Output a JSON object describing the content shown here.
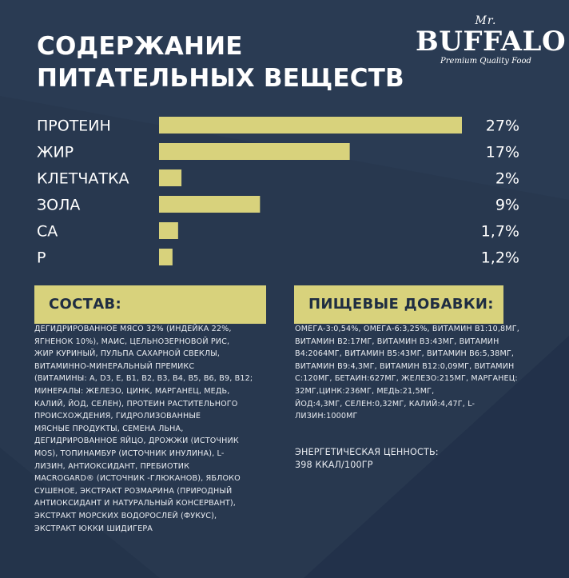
{
  "heading": {
    "line1": "СОДЕРЖАНИЕ",
    "line2": "ПИТАТЕЛЬНЫХ ВЕЩЕСТВ"
  },
  "brand": {
    "mr": "Mr.",
    "name": "BUFFALO",
    "tagline": "Premium Quality Food"
  },
  "colors": {
    "background": "#28384f",
    "accent": "#d8d27c",
    "text": "#ffffff"
  },
  "chart_data": {
    "type": "bar",
    "orientation": "horizontal",
    "categories": [
      "ПРОТЕИН",
      "ЖИР",
      "КЛЕТЧАТКА",
      "ЗОЛА",
      "CA",
      "P"
    ],
    "values": [
      27,
      17,
      2,
      9,
      1.7,
      1.2
    ],
    "value_labels": [
      "27%",
      "17%",
      "2%",
      "9%",
      "1,7%",
      "1,2%"
    ],
    "unit": "%",
    "xlim": [
      0,
      27
    ],
    "grid": false,
    "legend": "none"
  },
  "composition": {
    "title": "СОСТАВ:",
    "lines": [
      "ДЕГИДРИРОВАННОЕ МЯСО 32% (ИНДЕЙКА 22%,",
      "ЯГНЕНОК 10%), МАИС, ЦЕЛЬНОЗЕРНОВОЙ РИС,",
      "ЖИР КУРИНЫЙ, ПУЛЬПА САХАРНОЙ СВЕКЛЫ,",
      "ВИТАМИННО-МИНЕРАЛЬНЫЙ ПРЕМИКС",
      "(ВИТАМИНЫ: A, D3, E, B1, B2, B3, B4, B5, B6, B9, B12;",
      "МИНЕРАЛЫ: ЖЕЛЕЗО, ЦИНК, МАРГАНЕЦ, МЕДЬ,",
      "КАЛИЙ, ЙОД, СЕЛЕН), ПРОТЕИН РАСТИТЕЛЬНОГО",
      "ПРОИСХОЖДЕНИЯ, ГИДРОЛИЗОВАННЫЕ",
      "МЯСНЫЕ ПРОДУКТЫ, СЕМЕНА ЛЬНА,",
      "ДЕГИДРИРОВАННОЕ ЯЙЦО, ДРОЖЖИ (ИСТОЧНИК",
      "MOS), ТОПИНАМБУР (ИСТОЧНИК ИНУЛИНА), L-",
      "ЛИЗИН, АНТИОКСИДАНТ, ПРЕБИОТИК",
      "MACROGARD® (ИСТОЧНИК  -ГЛЮКАНОВ), ЯБЛОКО",
      "СУШЕНОЕ, ЭКСТРАКТ РОЗМАРИНА (ПРИРОДНЫЙ",
      "АНТИОКСИДАНТ И НАТУРАЛЬНЫЙ КОНСЕРВАНТ),",
      "ЭКСТРАКТ МОРСКИХ ВОДОРОСЛЕЙ (ФУКУС),",
      "ЭКСТРАКТ ЮККИ ШИДИГЕРА"
    ]
  },
  "additives": {
    "title": "ПИЩЕВЫЕ ДОБАВКИ:",
    "lines": [
      "ОМЕГА-3:0,54%, ОМЕГА-6:3,25%, ВИТАМИН B1:10,8МГ,",
      "ВИТАМИН B2:17МГ, ВИТАМИН B3:43МГ, ВИТАМИН",
      "B4:2064МГ, ВИТАМИН B5:43МГ, ВИТАМИН B6:5,38МГ,",
      "ВИТАМИН B9:4,3МГ, ВИТАМИН B12:0,09МГ, ВИТАМИН",
      "C:120МГ, БЕТАИН:627МГ, ЖЕЛЕЗО:215МГ, МАРГАНЕЦ:",
      "32МГ,ЦИНК:236МГ, МЕДЬ:21,5МГ,",
      "ЙОД:4,3МГ, СЕЛЕН:0,32МГ, КАЛИЙ:4,47Г, L-",
      "ЛИЗИН:1000МГ"
    ]
  },
  "energy": {
    "label": "ЭНЕРГЕТИЧЕСКАЯ ЦЕННОСТЬ:",
    "value": "398 ККАЛ/100ГР"
  }
}
